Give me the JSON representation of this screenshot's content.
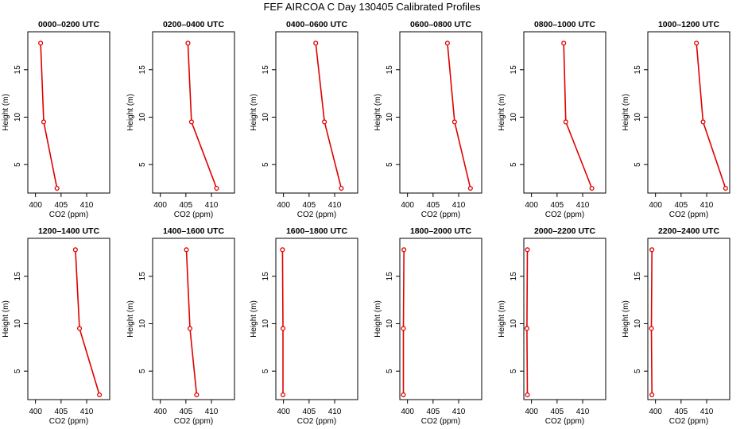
{
  "page_title": "FEF AIRCOA C  Day 130405  Calibrated Profiles",
  "colors": {
    "series": "#e00000",
    "marker": "#e00000",
    "axis": "#000000"
  },
  "chart_data": [
    {
      "type": "line",
      "title": "0000–0200 UTC",
      "xlabel": "CO2 (ppm)",
      "ylabel": "Height (m)",
      "xlim": [
        398.5,
        414.5
      ],
      "ylim": [
        2,
        19
      ],
      "xticks": [
        400,
        405,
        410
      ],
      "yticks": [
        5,
        10,
        15
      ],
      "x": [
        401.0,
        401.6,
        404.2
      ],
      "y": [
        17.8,
        9.5,
        2.5
      ]
    },
    {
      "type": "line",
      "title": "0200–0400 UTC",
      "xlabel": "CO2 (ppm)",
      "ylabel": "Height (m)",
      "xlim": [
        398.5,
        414.5
      ],
      "ylim": [
        2,
        19
      ],
      "xticks": [
        400,
        405,
        410
      ],
      "yticks": [
        5,
        10,
        15
      ],
      "x": [
        405.4,
        406.1,
        411.0
      ],
      "y": [
        17.8,
        9.5,
        2.5
      ]
    },
    {
      "type": "line",
      "title": "0400–0600 UTC",
      "xlabel": "CO2 (ppm)",
      "ylabel": "Height (m)",
      "xlim": [
        398.5,
        414.5
      ],
      "ylim": [
        2,
        19
      ],
      "xticks": [
        400,
        405,
        410
      ],
      "yticks": [
        5,
        10,
        15
      ],
      "x": [
        406.3,
        408.0,
        411.3
      ],
      "y": [
        17.8,
        9.5,
        2.5
      ]
    },
    {
      "type": "line",
      "title": "0600–0800 UTC",
      "xlabel": "CO2 (ppm)",
      "ylabel": "Height (m)",
      "xlim": [
        398.5,
        414.5
      ],
      "ylim": [
        2,
        19
      ],
      "xticks": [
        400,
        405,
        410
      ],
      "yticks": [
        5,
        10,
        15
      ],
      "x": [
        407.8,
        409.2,
        412.3
      ],
      "y": [
        17.8,
        9.5,
        2.5
      ]
    },
    {
      "type": "line",
      "title": "0800–1000 UTC",
      "xlabel": "CO2 (ppm)",
      "ylabel": "Height (m)",
      "xlim": [
        398.5,
        414.5
      ],
      "ylim": [
        2,
        19
      ],
      "xticks": [
        400,
        405,
        410
      ],
      "yticks": [
        5,
        10,
        15
      ],
      "x": [
        406.3,
        406.7,
        411.8
      ],
      "y": [
        17.8,
        9.5,
        2.5
      ]
    },
    {
      "type": "line",
      "title": "1000–1200 UTC",
      "xlabel": "CO2 (ppm)",
      "ylabel": "Height (m)",
      "xlim": [
        398.5,
        414.5
      ],
      "ylim": [
        2,
        19
      ],
      "xticks": [
        400,
        405,
        410
      ],
      "yticks": [
        5,
        10,
        15
      ],
      "x": [
        408.0,
        409.3,
        413.7
      ],
      "y": [
        17.8,
        9.5,
        2.5
      ]
    },
    {
      "type": "line",
      "title": "1200–1400 UTC",
      "xlabel": "CO2 (ppm)",
      "ylabel": "Height (m)",
      "xlim": [
        398.5,
        414.5
      ],
      "ylim": [
        2,
        19
      ],
      "xticks": [
        400,
        405,
        410
      ],
      "yticks": [
        5,
        10,
        15
      ],
      "x": [
        407.8,
        408.6,
        412.5
      ],
      "y": [
        17.8,
        9.5,
        2.5
      ]
    },
    {
      "type": "line",
      "title": "1400–1600 UTC",
      "xlabel": "CO2 (ppm)",
      "ylabel": "Height (m)",
      "xlim": [
        398.5,
        414.5
      ],
      "ylim": [
        2,
        19
      ],
      "xticks": [
        400,
        405,
        410
      ],
      "yticks": [
        5,
        10,
        15
      ],
      "x": [
        405.1,
        405.8,
        407.1
      ],
      "y": [
        17.8,
        9.5,
        2.5
      ]
    },
    {
      "type": "line",
      "title": "1600–1800 UTC",
      "xlabel": "CO2 (ppm)",
      "ylabel": "Height (m)",
      "xlim": [
        398.5,
        414.5
      ],
      "ylim": [
        2,
        19
      ],
      "xticks": [
        400,
        405,
        410
      ],
      "yticks": [
        5,
        10,
        15
      ],
      "x": [
        399.8,
        399.9,
        399.9
      ],
      "y": [
        17.8,
        9.5,
        2.5
      ]
    },
    {
      "type": "line",
      "title": "1800–2000 UTC",
      "xlabel": "CO2 (ppm)",
      "ylabel": "Height (m)",
      "xlim": [
        398.5,
        414.5
      ],
      "ylim": [
        2,
        19
      ],
      "xticks": [
        400,
        405,
        410
      ],
      "yticks": [
        5,
        10,
        15
      ],
      "x": [
        399.3,
        399.2,
        399.2
      ],
      "y": [
        17.8,
        9.5,
        2.5
      ]
    },
    {
      "type": "line",
      "title": "2000–2200 UTC",
      "xlabel": "CO2 (ppm)",
      "ylabel": "Height (m)",
      "xlim": [
        398.5,
        414.5
      ],
      "ylim": [
        2,
        19
      ],
      "xticks": [
        400,
        405,
        410
      ],
      "yticks": [
        5,
        10,
        15
      ],
      "x": [
        399.2,
        399.1,
        399.2
      ],
      "y": [
        17.8,
        9.5,
        2.5
      ]
    },
    {
      "type": "line",
      "title": "2200–2400 UTC",
      "xlabel": "CO2 (ppm)",
      "ylabel": "Height (m)",
      "xlim": [
        398.5,
        414.5
      ],
      "ylim": [
        2,
        19
      ],
      "xticks": [
        400,
        405,
        410
      ],
      "yticks": [
        5,
        10,
        15
      ],
      "x": [
        399.3,
        399.2,
        399.3
      ],
      "y": [
        17.8,
        9.5,
        2.5
      ]
    }
  ]
}
